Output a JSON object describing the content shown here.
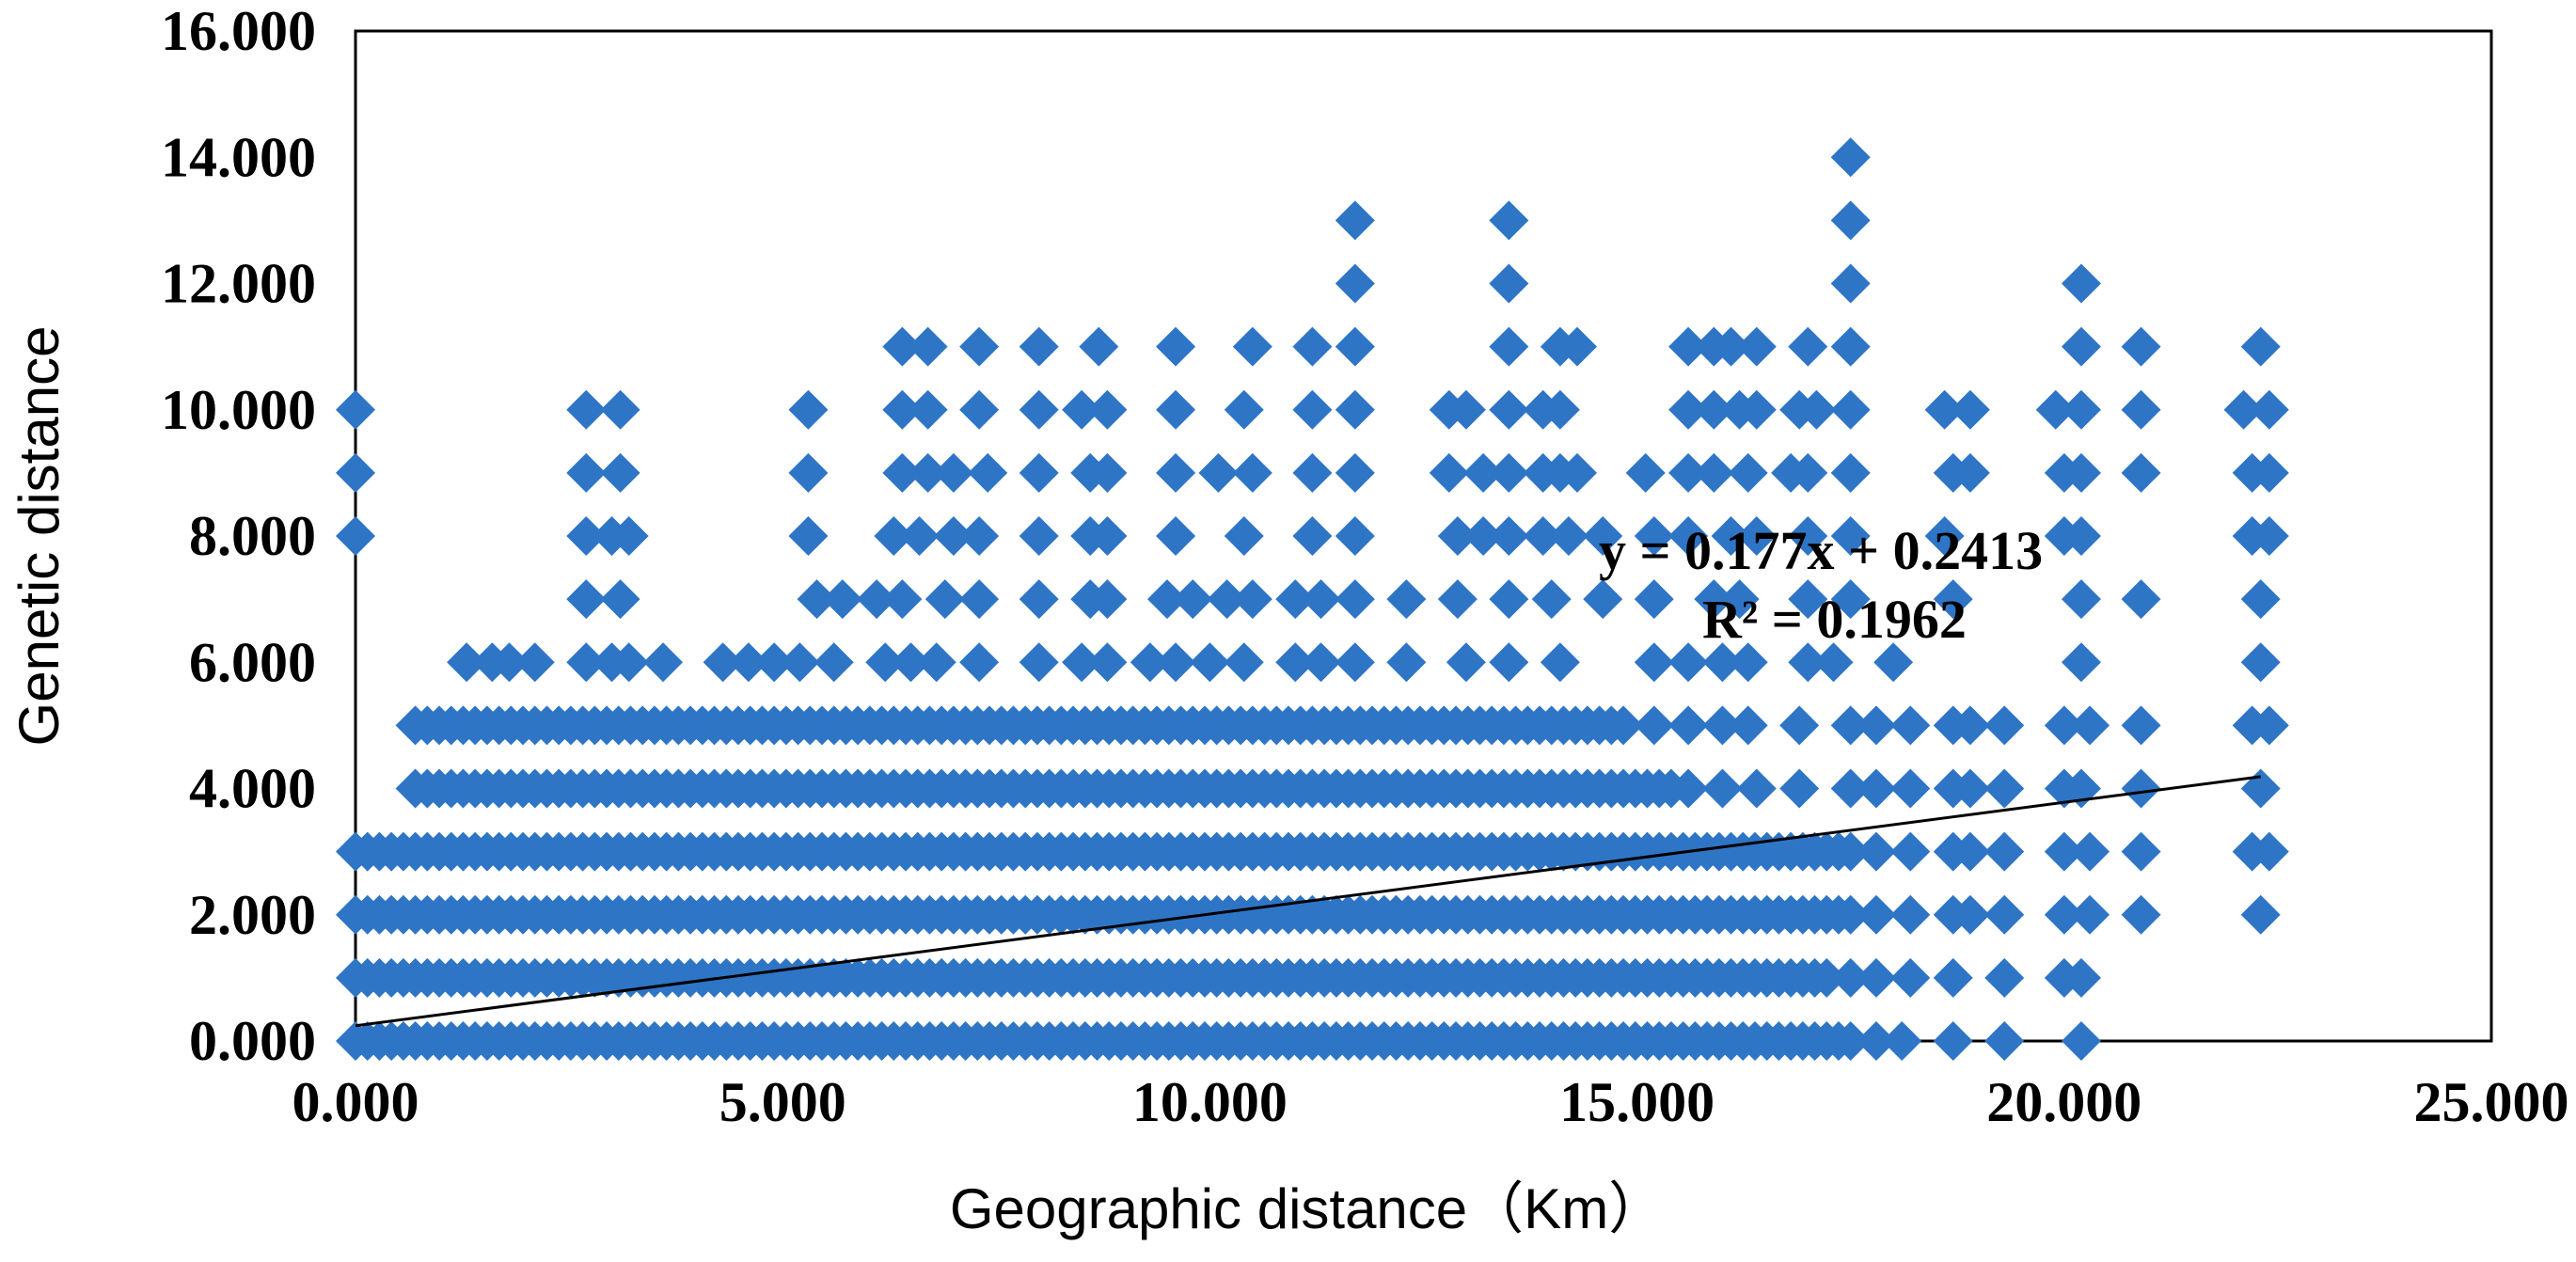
{
  "chart_data": {
    "type": "scatter",
    "xlabel": "Geographic distance（Km）",
    "ylabel": "Genetic distance",
    "xlim": [
      0,
      25
    ],
    "ylim": [
      0,
      16
    ],
    "x_ticks": [
      "0.000",
      "5.000",
      "10.000",
      "15.000",
      "20.000",
      "25.000"
    ],
    "y_ticks": [
      "0.000",
      "2.000",
      "4.000",
      "6.000",
      "8.000",
      "10.000",
      "12.000",
      "14.000",
      "16.000"
    ],
    "grid": false,
    "legend": "none",
    "marker_color": "#2E75C6",
    "trendline": {
      "type": "linear",
      "slope": 0.177,
      "intercept": 0.2413,
      "x_range": [
        0,
        22.3
      ],
      "equation": "y = 0.177x + 0.2413",
      "r_squared": "R² = 0.1962"
    },
    "series": [
      {
        "dense_bands": [
          {
            "y": 0,
            "x_range": [
              0,
              17.6
            ]
          },
          {
            "y": 1,
            "x_range": [
              0,
              17.3
            ]
          },
          {
            "y": 2,
            "x_range": [
              0,
              17.6
            ]
          },
          {
            "y": 3,
            "x_range": [
              0,
              17.6
            ]
          },
          {
            "y": 4,
            "x_range": [
              0.7,
              15.5
            ]
          },
          {
            "y": 5,
            "x_range": [
              0.7,
              14.9
            ]
          }
        ],
        "points": [
          [
            17.8,
            0
          ],
          [
            18.1,
            0
          ],
          [
            18.7,
            0
          ],
          [
            19.3,
            0
          ],
          [
            20.2,
            0
          ],
          [
            17.5,
            1
          ],
          [
            17.8,
            1
          ],
          [
            18.2,
            1
          ],
          [
            18.7,
            1
          ],
          [
            19.3,
            1
          ],
          [
            20.0,
            1
          ],
          [
            20.2,
            1
          ],
          [
            17.8,
            2
          ],
          [
            18.2,
            2
          ],
          [
            18.7,
            2
          ],
          [
            18.9,
            2
          ],
          [
            19.3,
            2
          ],
          [
            20.0,
            2
          ],
          [
            20.3,
            2
          ],
          [
            20.9,
            2
          ],
          [
            22.3,
            2
          ],
          [
            17.8,
            3
          ],
          [
            18.2,
            3
          ],
          [
            18.7,
            3
          ],
          [
            18.9,
            3
          ],
          [
            19.3,
            3
          ],
          [
            20.0,
            3
          ],
          [
            20.3,
            3
          ],
          [
            20.9,
            3
          ],
          [
            22.2,
            3
          ],
          [
            22.4,
            3
          ],
          [
            15.6,
            4
          ],
          [
            16.0,
            4
          ],
          [
            16.4,
            4
          ],
          [
            16.9,
            4
          ],
          [
            17.5,
            4
          ],
          [
            17.8,
            4
          ],
          [
            18.2,
            4
          ],
          [
            18.7,
            4
          ],
          [
            18.9,
            4
          ],
          [
            19.3,
            4
          ],
          [
            20.0,
            4
          ],
          [
            20.2,
            4
          ],
          [
            20.9,
            4
          ],
          [
            22.3,
            4
          ],
          [
            15.2,
            5
          ],
          [
            15.6,
            5
          ],
          [
            16.0,
            5
          ],
          [
            16.3,
            5
          ],
          [
            16.9,
            5
          ],
          [
            17.5,
            5
          ],
          [
            17.8,
            5
          ],
          [
            18.2,
            5
          ],
          [
            18.7,
            5
          ],
          [
            18.9,
            5
          ],
          [
            19.3,
            5
          ],
          [
            20.0,
            5
          ],
          [
            20.3,
            5
          ],
          [
            20.9,
            5
          ],
          [
            22.2,
            5
          ],
          [
            22.4,
            5
          ],
          [
            1.3,
            6
          ],
          [
            1.6,
            6
          ],
          [
            1.8,
            6
          ],
          [
            2.1,
            6
          ],
          [
            2.7,
            6
          ],
          [
            3.0,
            6
          ],
          [
            3.2,
            6
          ],
          [
            3.6,
            6
          ],
          [
            4.3,
            6
          ],
          [
            4.6,
            6
          ],
          [
            4.9,
            6
          ],
          [
            5.2,
            6
          ],
          [
            5.6,
            6
          ],
          [
            6.2,
            6
          ],
          [
            6.5,
            6
          ],
          [
            6.8,
            6
          ],
          [
            7.3,
            6
          ],
          [
            8.0,
            6
          ],
          [
            8.5,
            6
          ],
          [
            8.8,
            6
          ],
          [
            9.3,
            6
          ],
          [
            9.6,
            6
          ],
          [
            10.0,
            6
          ],
          [
            10.4,
            6
          ],
          [
            11.0,
            6
          ],
          [
            11.3,
            6
          ],
          [
            11.7,
            6
          ],
          [
            12.3,
            6
          ],
          [
            13.0,
            6
          ],
          [
            13.5,
            6
          ],
          [
            14.1,
            6
          ],
          [
            15.2,
            6
          ],
          [
            15.6,
            6
          ],
          [
            16.0,
            6
          ],
          [
            16.3,
            6
          ],
          [
            17.0,
            6
          ],
          [
            17.3,
            6
          ],
          [
            18.0,
            6
          ],
          [
            20.2,
            6
          ],
          [
            22.3,
            6
          ],
          [
            2.7,
            7
          ],
          [
            3.1,
            7
          ],
          [
            5.4,
            7
          ],
          [
            5.7,
            7
          ],
          [
            6.1,
            7
          ],
          [
            6.4,
            7
          ],
          [
            6.9,
            7
          ],
          [
            7.3,
            7
          ],
          [
            8.0,
            7
          ],
          [
            8.6,
            7
          ],
          [
            8.8,
            7
          ],
          [
            9.5,
            7
          ],
          [
            9.8,
            7
          ],
          [
            10.2,
            7
          ],
          [
            10.5,
            7
          ],
          [
            11.0,
            7
          ],
          [
            11.3,
            7
          ],
          [
            11.7,
            7
          ],
          [
            12.3,
            7
          ],
          [
            12.9,
            7
          ],
          [
            13.5,
            7
          ],
          [
            14.0,
            7
          ],
          [
            14.6,
            7
          ],
          [
            15.2,
            7
          ],
          [
            15.9,
            7
          ],
          [
            16.2,
            7
          ],
          [
            17.0,
            7
          ],
          [
            17.5,
            7
          ],
          [
            18.7,
            7
          ],
          [
            20.2,
            7
          ],
          [
            20.9,
            7
          ],
          [
            22.3,
            7
          ],
          [
            0,
            8
          ],
          [
            2.7,
            8
          ],
          [
            3.0,
            8
          ],
          [
            3.2,
            8
          ],
          [
            5.3,
            8
          ],
          [
            6.3,
            8
          ],
          [
            6.6,
            8
          ],
          [
            7.0,
            8
          ],
          [
            7.3,
            8
          ],
          [
            8.0,
            8
          ],
          [
            8.6,
            8
          ],
          [
            8.8,
            8
          ],
          [
            9.6,
            8
          ],
          [
            10.4,
            8
          ],
          [
            11.2,
            8
          ],
          [
            11.7,
            8
          ],
          [
            12.9,
            8
          ],
          [
            13.2,
            8
          ],
          [
            13.5,
            8
          ],
          [
            13.9,
            8
          ],
          [
            14.2,
            8
          ],
          [
            14.6,
            8
          ],
          [
            15.2,
            8
          ],
          [
            15.6,
            8
          ],
          [
            16.1,
            8
          ],
          [
            16.4,
            8
          ],
          [
            17.0,
            8
          ],
          [
            17.5,
            8
          ],
          [
            18.6,
            8
          ],
          [
            20.0,
            8
          ],
          [
            20.2,
            8
          ],
          [
            22.2,
            8
          ],
          [
            22.4,
            8
          ],
          [
            0,
            9
          ],
          [
            2.7,
            9
          ],
          [
            3.1,
            9
          ],
          [
            5.3,
            9
          ],
          [
            6.4,
            9
          ],
          [
            6.7,
            9
          ],
          [
            7.0,
            9
          ],
          [
            7.4,
            9
          ],
          [
            8.0,
            9
          ],
          [
            8.6,
            9
          ],
          [
            8.8,
            9
          ],
          [
            9.6,
            9
          ],
          [
            10.1,
            9
          ],
          [
            10.5,
            9
          ],
          [
            11.2,
            9
          ],
          [
            11.7,
            9
          ],
          [
            12.8,
            9
          ],
          [
            13.2,
            9
          ],
          [
            13.5,
            9
          ],
          [
            13.9,
            9
          ],
          [
            14.1,
            9
          ],
          [
            14.3,
            9
          ],
          [
            15.1,
            9
          ],
          [
            15.6,
            9
          ],
          [
            15.9,
            9
          ],
          [
            16.3,
            9
          ],
          [
            16.8,
            9
          ],
          [
            17.0,
            9
          ],
          [
            17.5,
            9
          ],
          [
            18.7,
            9
          ],
          [
            18.9,
            9
          ],
          [
            20.0,
            9
          ],
          [
            20.2,
            9
          ],
          [
            20.9,
            9
          ],
          [
            22.2,
            9
          ],
          [
            22.4,
            9
          ],
          [
            0,
            10
          ],
          [
            2.7,
            10
          ],
          [
            3.1,
            10
          ],
          [
            5.3,
            10
          ],
          [
            6.4,
            10
          ],
          [
            6.7,
            10
          ],
          [
            7.3,
            10
          ],
          [
            8.0,
            10
          ],
          [
            8.5,
            10
          ],
          [
            8.8,
            10
          ],
          [
            9.6,
            10
          ],
          [
            10.4,
            10
          ],
          [
            11.2,
            10
          ],
          [
            11.7,
            10
          ],
          [
            12.8,
            10
          ],
          [
            13.0,
            10
          ],
          [
            13.5,
            10
          ],
          [
            13.9,
            10
          ],
          [
            14.1,
            10
          ],
          [
            15.6,
            10
          ],
          [
            15.9,
            10
          ],
          [
            16.2,
            10
          ],
          [
            16.4,
            10
          ],
          [
            16.9,
            10
          ],
          [
            17.1,
            10
          ],
          [
            17.5,
            10
          ],
          [
            18.6,
            10
          ],
          [
            18.9,
            10
          ],
          [
            19.9,
            10
          ],
          [
            20.2,
            10
          ],
          [
            20.9,
            10
          ],
          [
            22.1,
            10
          ],
          [
            22.4,
            10
          ],
          [
            6.4,
            11
          ],
          [
            6.7,
            11
          ],
          [
            7.3,
            11
          ],
          [
            8.0,
            11
          ],
          [
            8.7,
            11
          ],
          [
            9.6,
            11
          ],
          [
            10.5,
            11
          ],
          [
            11.2,
            11
          ],
          [
            11.7,
            11
          ],
          [
            13.5,
            11
          ],
          [
            14.1,
            11
          ],
          [
            14.3,
            11
          ],
          [
            15.6,
            11
          ],
          [
            15.9,
            11
          ],
          [
            16.1,
            11
          ],
          [
            16.4,
            11
          ],
          [
            17.0,
            11
          ],
          [
            17.5,
            11
          ],
          [
            20.2,
            11
          ],
          [
            20.9,
            11
          ],
          [
            22.3,
            11
          ],
          [
            11.7,
            12
          ],
          [
            13.5,
            12
          ],
          [
            17.5,
            12
          ],
          [
            20.2,
            12
          ],
          [
            11.7,
            13
          ],
          [
            13.5,
            13
          ],
          [
            17.5,
            13
          ],
          [
            17.5,
            14
          ]
        ]
      }
    ]
  }
}
